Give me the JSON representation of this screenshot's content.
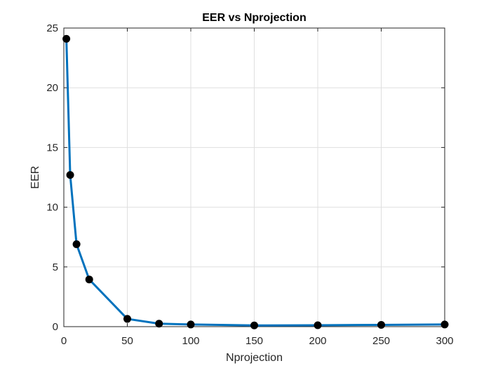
{
  "chart_data": {
    "type": "line",
    "title": "EER vs Nprojection",
    "xlabel": "Nprojection",
    "ylabel": "EER",
    "xlim": [
      0,
      300
    ],
    "ylim": [
      0,
      25
    ],
    "x_ticks": [
      "0",
      "50",
      "100",
      "150",
      "200",
      "250",
      "300"
    ],
    "y_ticks": [
      "0",
      "5",
      "10",
      "15",
      "20",
      "25"
    ],
    "grid": true,
    "series": [
      {
        "x": [
          2,
          5,
          10,
          20,
          50,
          75,
          100,
          150,
          200,
          250,
          300
        ],
        "values": [
          24.1,
          12.7,
          6.9,
          3.95,
          0.65,
          0.25,
          0.18,
          0.1,
          0.12,
          0.15,
          0.18
        ],
        "line_color": "#0072BD",
        "marker_color": "#000000"
      }
    ]
  }
}
